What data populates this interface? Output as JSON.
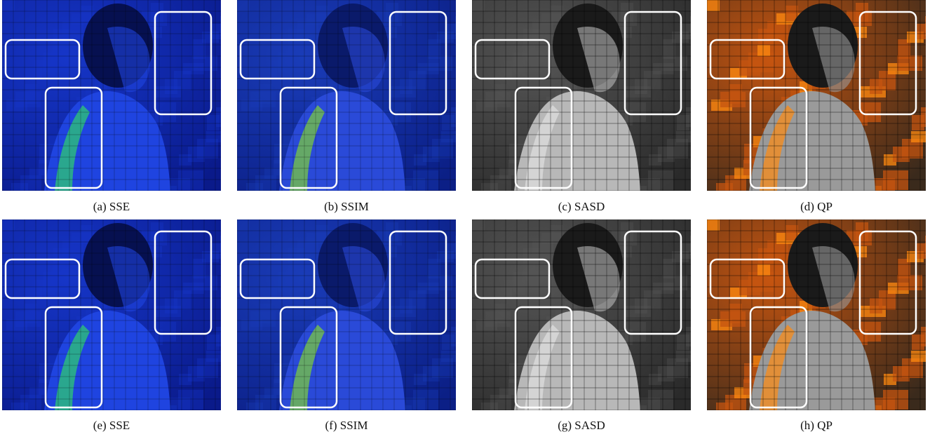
{
  "figure": {
    "panels": [
      {
        "caption": "(a) SSE"
      },
      {
        "caption": "(b) SSIM"
      },
      {
        "caption": "(c) SASD"
      },
      {
        "caption": "(d) QP"
      },
      {
        "caption": "(e) SSE"
      },
      {
        "caption": "(f) SSIM"
      },
      {
        "caption": "(g) SASD"
      },
      {
        "caption": "(h) QP"
      }
    ]
  }
}
